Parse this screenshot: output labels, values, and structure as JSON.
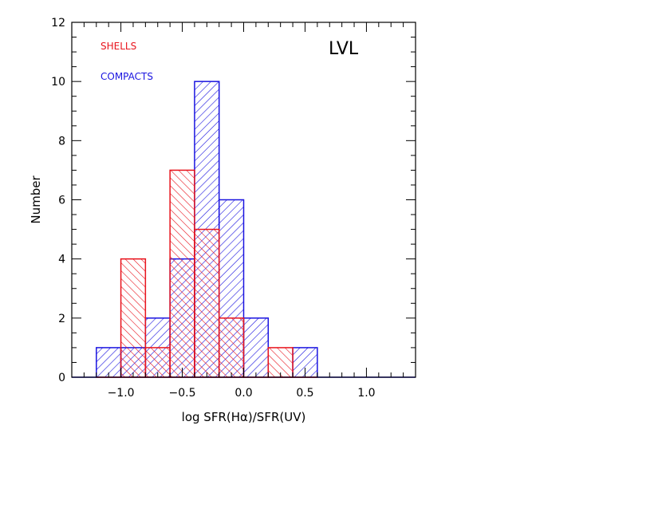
{
  "chart_data": {
    "type": "bar",
    "title": "",
    "annotation": "LVL",
    "xlabel": "log SFR(Hα)/SFR(UV)",
    "ylabel": "Number",
    "xlim": [
      -1.4,
      1.4
    ],
    "ylim": [
      0,
      12
    ],
    "bin_edges": [
      -1.2,
      -1.0,
      -0.8,
      -0.6,
      -0.4,
      -0.2,
      0.0,
      0.2,
      0.4,
      0.6
    ],
    "x_ticks": [
      -1.0,
      -0.5,
      0.0,
      0.5,
      1.0
    ],
    "x_tick_labels": [
      "−1.0",
      "−0.5",
      "0.0",
      "0.5",
      "1.0"
    ],
    "y_ticks": [
      0,
      2,
      4,
      6,
      8,
      10,
      12
    ],
    "y_tick_labels": [
      "0",
      "2",
      "4",
      "6",
      "8",
      "10",
      "12"
    ],
    "series": [
      {
        "name": "SHELLS",
        "color": "#e8131c",
        "hatch": "descending",
        "values": [
          0,
          4,
          1,
          7,
          5,
          2,
          0,
          1,
          0
        ]
      },
      {
        "name": "COMPACTS",
        "color": "#1a14e0",
        "hatch": "ascending",
        "values": [
          1,
          1,
          2,
          4,
          10,
          6,
          2,
          0,
          1
        ]
      }
    ],
    "legend_position": "top-left",
    "grid": false
  }
}
